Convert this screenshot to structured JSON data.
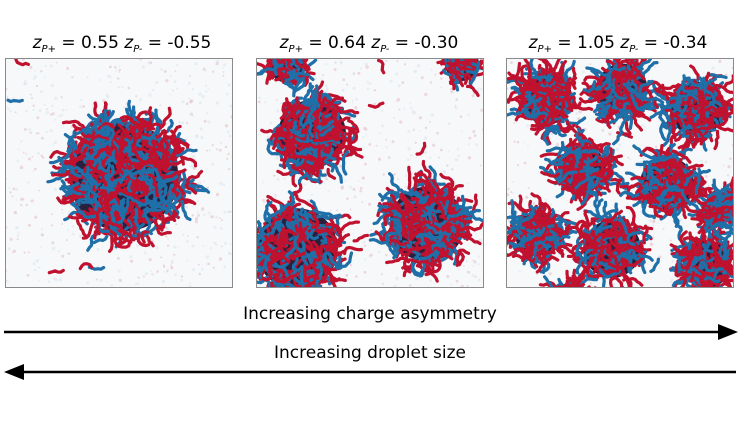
{
  "panels": [
    {
      "zp_label": "z",
      "zp_sub": "P+",
      "zp_value": "0.55",
      "zm_label": "z",
      "zm_sub": "P-",
      "zm_value": "-0.55"
    },
    {
      "zp_label": "z",
      "zp_sub": "P+",
      "zp_value": "0.64",
      "zm_label": "z",
      "zm_sub": "P-",
      "zm_value": "-0.30"
    },
    {
      "zp_label": "z",
      "zp_sub": "P+",
      "zp_value": "1.05",
      "zm_label": "z",
      "zm_sub": "P-",
      "zm_value": "-0.34"
    }
  ],
  "arrows": {
    "right_label": "Increasing charge asymmetry",
    "left_label": "Increasing droplet size"
  },
  "colors": {
    "polycation": "#c0122f",
    "polyanion": "#1f6fa8",
    "background_solvent": "#dfe8ef"
  }
}
